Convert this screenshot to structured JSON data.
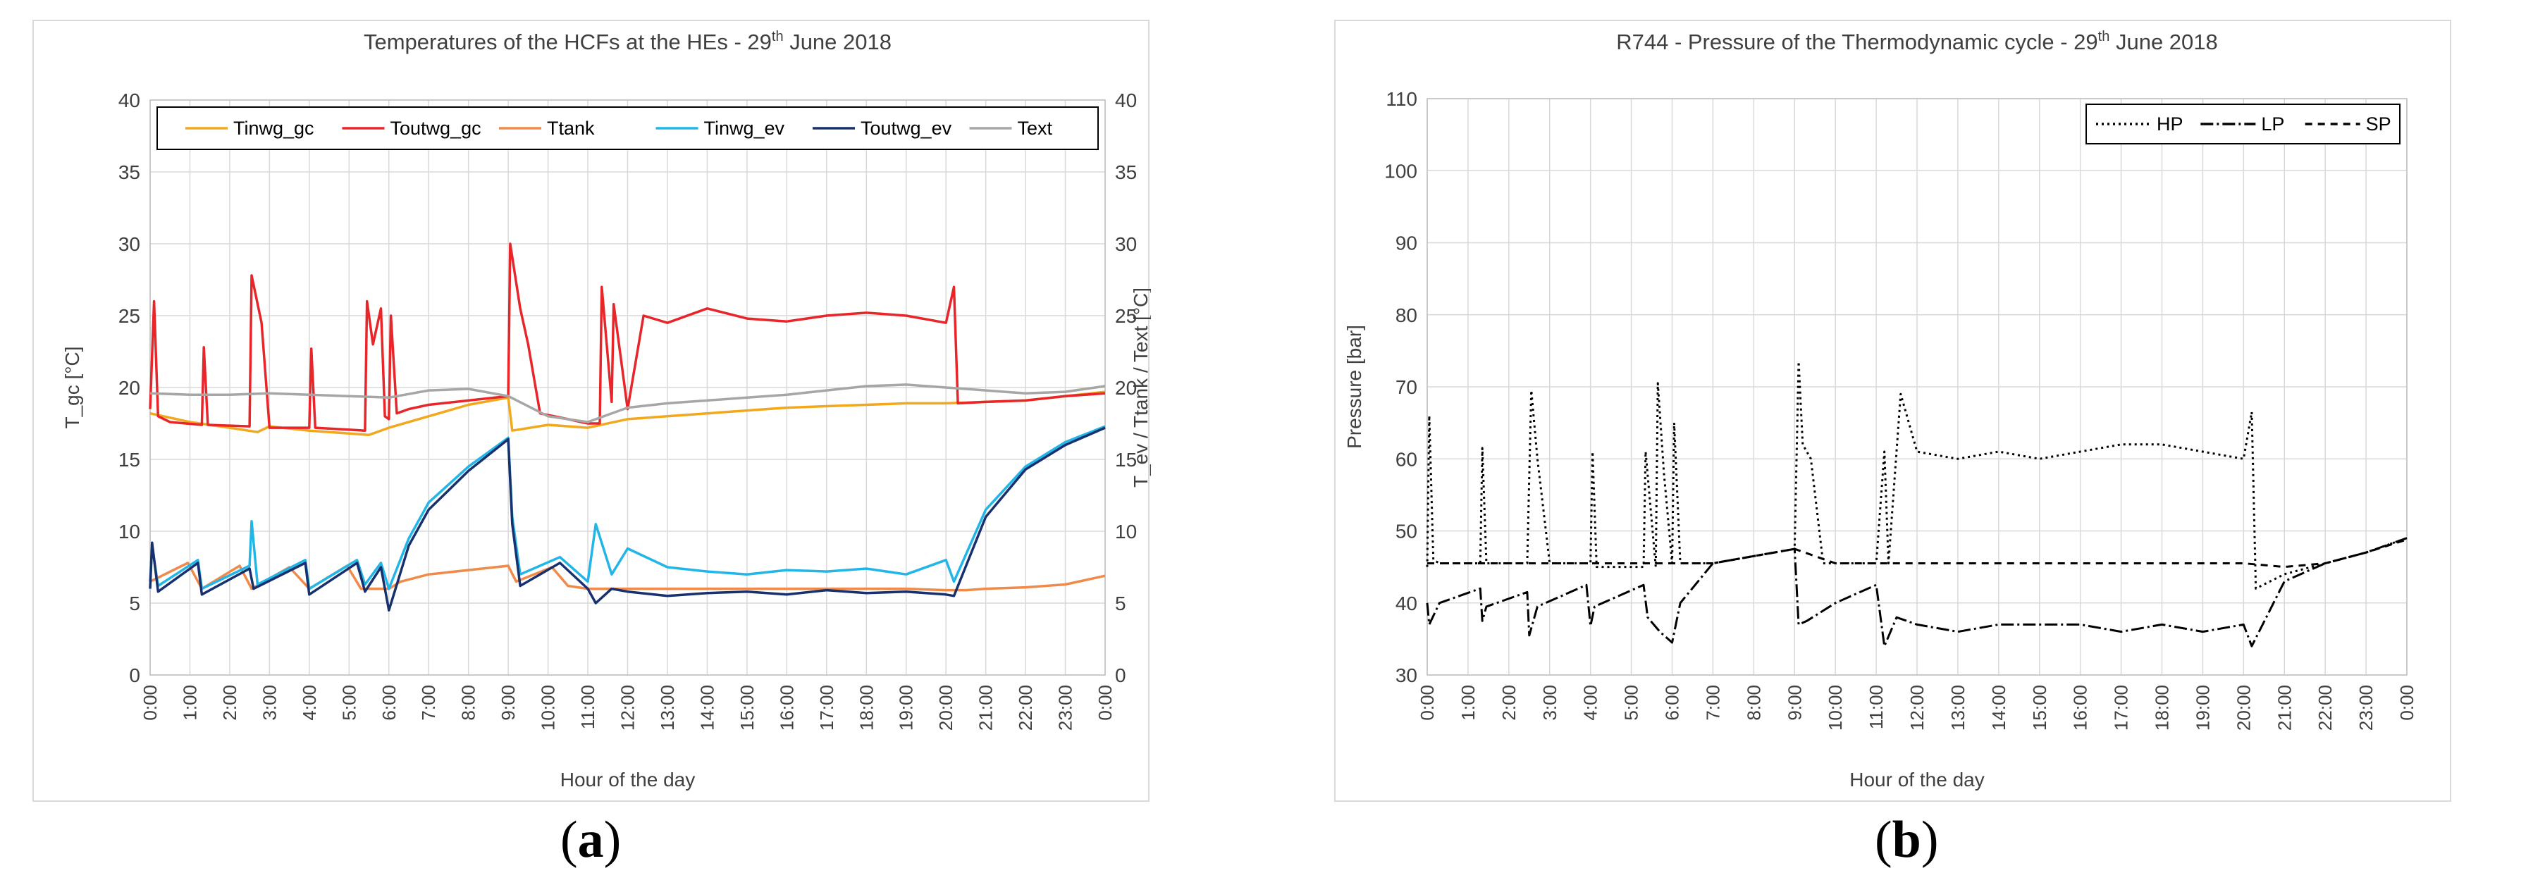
{
  "chart_data": [
    {
      "type": "line",
      "title": "Temperatures of the HCFs at the HEs - 29",
      "title_sup": "th",
      "title_tail": " June 2018",
      "xlabel": "Hour of the day",
      "ylabel_left": "T_gc [°C]",
      "ylabel_right": "T_ev / Ttank / Text [°C]",
      "ylim": [
        0,
        40
      ],
      "yticks": [
        0,
        5,
        10,
        15,
        20,
        25,
        30,
        35,
        40
      ],
      "xticks": [
        "0:00",
        "1:00",
        "2:00",
        "3:00",
        "4:00",
        "5:00",
        "6:00",
        "7:00",
        "8:00",
        "9:00",
        "10:00",
        "11:00",
        "12:00",
        "13:00",
        "14:00",
        "15:00",
        "16:00",
        "17:00",
        "18:00",
        "19:00",
        "20:00",
        "21:00",
        "22:00",
        "23:00",
        "0:00"
      ],
      "grid": true,
      "legend_position": "top",
      "series": [
        {
          "name": "Tinwg_gc",
          "color": "#f2a81d",
          "x": [
            0,
            1,
            2,
            2.7,
            3,
            4,
            5,
            5.5,
            6,
            7,
            8,
            9,
            9.1,
            10,
            11,
            12,
            13,
            14,
            15,
            16,
            17,
            18,
            19,
            20,
            21,
            22,
            23,
            24
          ],
          "values": [
            18.2,
            17.6,
            17.2,
            16.9,
            17.3,
            17.0,
            16.8,
            16.7,
            17.2,
            18.0,
            18.8,
            19.3,
            17.0,
            17.4,
            17.2,
            17.8,
            18.0,
            18.2,
            18.4,
            18.6,
            18.7,
            18.8,
            18.9,
            18.9,
            19.0,
            19.1,
            19.4,
            19.7
          ]
        },
        {
          "name": "Toutwg_gc",
          "color": "#e8262a",
          "x": [
            0,
            0.1,
            0.2,
            0.5,
            1.3,
            1.35,
            1.45,
            2.5,
            2.55,
            2.8,
            3.0,
            4.0,
            4.05,
            4.15,
            5.4,
            5.45,
            5.6,
            5.8,
            5.9,
            6.0,
            6.05,
            6.2,
            6.5,
            7.0,
            8.0,
            9.0,
            9.05,
            9.3,
            9.5,
            9.8,
            10.5,
            11.0,
            11.3,
            11.35,
            11.6,
            11.65,
            12.0,
            12.4,
            13.0,
            14.0,
            15.0,
            16.0,
            17.0,
            18.0,
            19.0,
            20.0,
            20.2,
            20.3,
            21,
            22,
            23,
            24
          ],
          "values": [
            18.5,
            26.0,
            18.0,
            17.6,
            17.4,
            22.8,
            17.4,
            17.3,
            27.8,
            24.5,
            17.2,
            17.2,
            22.7,
            17.2,
            17.0,
            26.0,
            23.0,
            25.5,
            18.0,
            17.8,
            25.0,
            18.2,
            18.5,
            18.8,
            19.1,
            19.4,
            30.0,
            25.5,
            23.0,
            18.2,
            17.8,
            17.5,
            17.5,
            27.0,
            19.0,
            25.8,
            18.5,
            25.0,
            24.5,
            25.5,
            24.8,
            24.6,
            25.0,
            25.2,
            25.0,
            24.5,
            27.0,
            18.9,
            19.0,
            19.1,
            19.4,
            19.6
          ]
        },
        {
          "name": "Ttank",
          "color": "#f08a4b",
          "x": [
            0,
            0.95,
            1.3,
            2.25,
            2.55,
            3.5,
            4.0,
            4.95,
            5.3,
            6.0,
            6.3,
            7,
            8,
            9,
            9.2,
            10.1,
            10.5,
            11,
            12,
            13,
            14,
            15,
            16,
            17,
            18,
            19,
            20,
            20.5,
            21,
            22,
            23,
            24
          ],
          "values": [
            6.5,
            7.8,
            6.0,
            7.6,
            6.0,
            7.5,
            6.0,
            7.6,
            6.0,
            6.0,
            6.5,
            7.0,
            7.3,
            7.6,
            6.5,
            7.5,
            6.2,
            6.0,
            6.0,
            6.0,
            6.0,
            6.0,
            6.0,
            6.0,
            6.0,
            6.0,
            5.9,
            5.9,
            6.0,
            6.1,
            6.3,
            6.9
          ]
        },
        {
          "name": "Tinwg_ev",
          "color": "#22b5e8",
          "x": [
            0,
            0.05,
            0.2,
            1.2,
            1.3,
            2.5,
            2.55,
            2.7,
            3.9,
            4.0,
            5.2,
            5.4,
            5.8,
            6.0,
            6.5,
            7,
            8,
            9,
            9.1,
            9.3,
            10.3,
            11.0,
            11.2,
            11.6,
            12,
            13,
            14,
            15,
            16,
            17,
            18,
            19,
            20,
            20.2,
            21,
            22,
            23,
            24
          ],
          "values": [
            6.5,
            9.0,
            6.2,
            8.0,
            6.0,
            7.6,
            10.7,
            6.3,
            8.0,
            6.0,
            8.0,
            6.3,
            7.8,
            6.0,
            9.5,
            12.0,
            14.5,
            16.5,
            11.0,
            7.0,
            8.2,
            6.5,
            10.5,
            7.0,
            8.8,
            7.5,
            7.2,
            7.0,
            7.3,
            7.2,
            7.4,
            7.0,
            8.0,
            6.5,
            11.5,
            14.5,
            16.2,
            17.3
          ]
        },
        {
          "name": "Toutwg_ev",
          "color": "#17306e",
          "x": [
            0,
            0.05,
            0.2,
            1.2,
            1.3,
            2.5,
            2.6,
            3.9,
            4.0,
            5.2,
            5.4,
            5.8,
            6.0,
            6.5,
            7,
            8,
            9,
            9.1,
            9.3,
            10.3,
            11.0,
            11.2,
            11.6,
            12,
            13,
            14,
            15,
            16,
            17,
            18,
            19,
            20,
            20.2,
            21,
            22,
            23,
            24
          ],
          "values": [
            6.0,
            9.2,
            5.8,
            7.8,
            5.6,
            7.4,
            6.0,
            7.8,
            5.6,
            7.8,
            5.8,
            7.5,
            4.5,
            9.0,
            11.5,
            14.2,
            16.4,
            10.5,
            6.2,
            7.8,
            6.0,
            5.0,
            6.0,
            5.8,
            5.5,
            5.7,
            5.8,
            5.6,
            5.9,
            5.7,
            5.8,
            5.6,
            5.5,
            11.0,
            14.3,
            16.0,
            17.2
          ]
        },
        {
          "name": "Text",
          "color": "#a6a6a6",
          "x": [
            0,
            1,
            2,
            3,
            4,
            5,
            6,
            7,
            8,
            9,
            10,
            11,
            12,
            13,
            14,
            15,
            16,
            17,
            18,
            19,
            20,
            21,
            22,
            23,
            24
          ],
          "values": [
            19.6,
            19.5,
            19.5,
            19.6,
            19.5,
            19.4,
            19.3,
            19.8,
            19.9,
            19.4,
            18.0,
            17.6,
            18.6,
            18.9,
            19.1,
            19.3,
            19.5,
            19.8,
            20.1,
            20.2,
            20.0,
            19.8,
            19.6,
            19.7,
            20.1
          ]
        }
      ]
    },
    {
      "type": "line",
      "title": "R744 - Pressure of the Thermodynamic cycle - 29",
      "title_sup": "th",
      "title_tail": " June 2018",
      "xlabel": "Hour of the day",
      "ylabel": "Pressure [bar]",
      "ylim": [
        30,
        110
      ],
      "yticks": [
        30,
        40,
        50,
        60,
        70,
        80,
        90,
        100,
        110
      ],
      "xticks": [
        "0:00",
        "1:00",
        "2:00",
        "3:00",
        "4:00",
        "5:00",
        "6:00",
        "7:00",
        "8:00",
        "9:00",
        "10:00",
        "11:00",
        "12:00",
        "13:00",
        "14:00",
        "15:00",
        "16:00",
        "17:00",
        "18:00",
        "19:00",
        "20:00",
        "21:00",
        "22:00",
        "23:00",
        "0:00"
      ],
      "grid": true,
      "legend_position": "top-right",
      "series": [
        {
          "name": "HP",
          "color": "#000000",
          "dash": "3,5",
          "x": [
            0,
            0.05,
            0.15,
            0.3,
            1.3,
            1.35,
            1.45,
            2.45,
            2.55,
            2.7,
            3.0,
            4.0,
            4.05,
            4.15,
            5.3,
            5.35,
            5.6,
            5.65,
            5.8,
            6.0,
            6.05,
            6.2,
            7,
            8,
            9,
            9.1,
            9.2,
            9.4,
            9.7,
            10,
            11.0,
            11.2,
            11.3,
            11.6,
            12,
            13,
            14,
            15,
            16,
            17,
            18,
            19,
            20,
            20.2,
            20.3,
            21,
            22,
            23,
            24
          ],
          "values": [
            45,
            66,
            46,
            45.5,
            45.5,
            61.5,
            45.5,
            45.5,
            69.5,
            60,
            45.5,
            45.5,
            61,
            45,
            45,
            61,
            45,
            70.5,
            58,
            45.5,
            65,
            45.5,
            45.5,
            46.5,
            47.5,
            73.5,
            62,
            60,
            45.5,
            45.5,
            45.5,
            61,
            45.5,
            69,
            61,
            60,
            61,
            60,
            61,
            62,
            62,
            61,
            60,
            66.5,
            42,
            44,
            45.5,
            47,
            49
          ]
        },
        {
          "name": "LP",
          "color": "#000000",
          "dash": "18,5,3,5",
          "x": [
            0,
            0.05,
            0.3,
            1.3,
            1.35,
            1.45,
            2.45,
            2.5,
            2.7,
            3.9,
            4.0,
            4.1,
            5.3,
            5.4,
            5.7,
            6.0,
            6.2,
            7,
            8,
            9,
            9.1,
            9.3,
            10,
            11.0,
            11.2,
            11.5,
            12,
            13,
            14,
            15,
            16,
            17,
            18,
            19,
            20,
            20.2,
            21,
            22,
            23,
            24
          ],
          "values": [
            40,
            37,
            40,
            42,
            37.5,
            39.5,
            41.5,
            35.5,
            39.5,
            42.5,
            36.8,
            39.5,
            42.5,
            38,
            36,
            34.5,
            40,
            45.5,
            46.5,
            47.5,
            37,
            37.5,
            40,
            42.5,
            34,
            38,
            37,
            36,
            37,
            37,
            37,
            36,
            37,
            36,
            37,
            34,
            43,
            45.5,
            47,
            49
          ]
        },
        {
          "name": "SP",
          "color": "#000000",
          "dash": "10,8",
          "x": [
            0,
            1,
            2,
            3,
            4,
            5,
            6,
            7,
            8,
            9,
            10,
            11,
            12,
            13,
            14,
            15,
            16,
            17,
            18,
            19,
            20,
            21,
            22,
            23,
            24
          ],
          "values": [
            45.5,
            45.5,
            45.5,
            45.5,
            45.5,
            45.5,
            45.5,
            45.5,
            46.5,
            47.5,
            45.5,
            45.5,
            45.5,
            45.5,
            45.5,
            45.5,
            45.5,
            45.5,
            45.5,
            45.5,
            45.5,
            45,
            45.5,
            47,
            48.8
          ]
        }
      ]
    }
  ],
  "labels": {
    "a": "a",
    "b": "b"
  }
}
